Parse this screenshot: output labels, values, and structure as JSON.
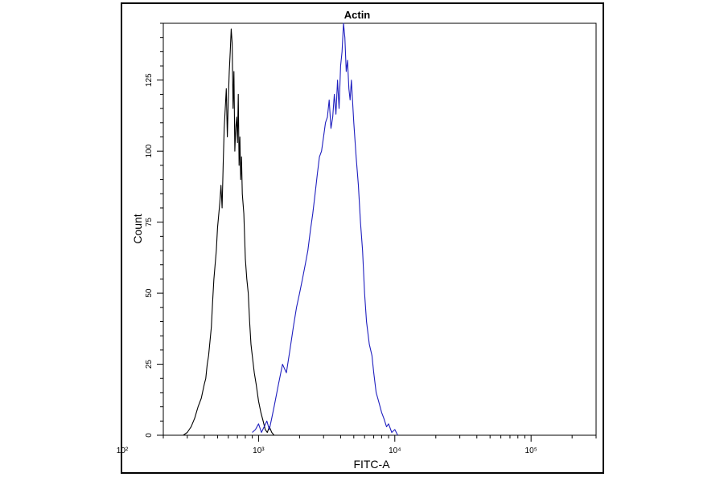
{
  "chart_data": {
    "type": "line",
    "title": "Actin",
    "xlabel": "FITC-A",
    "ylabel": "Count",
    "x_scale": "log",
    "xlim": [
      200,
      300000
    ],
    "ylim": [
      0,
      145
    ],
    "grid": false,
    "legend": "none",
    "x_ticks": [
      {
        "value": 100,
        "label": "10²"
      },
      {
        "value": 1000,
        "label": "10³"
      },
      {
        "value": 10000,
        "label": "10⁴"
      },
      {
        "value": 100000,
        "label": "10⁵"
      }
    ],
    "y_ticks": [
      0,
      25,
      50,
      75,
      100,
      125
    ],
    "series": [
      {
        "color": "#000000",
        "x": [
          280,
          300,
          320,
          340,
          360,
          380,
          400,
          410,
          420,
          430,
          440,
          450,
          460,
          470,
          480,
          490,
          500,
          520,
          530,
          540,
          550,
          560,
          570,
          580,
          590,
          600,
          610,
          620,
          630,
          640,
          650,
          660,
          670,
          680,
          690,
          700,
          710,
          720,
          730,
          740,
          750,
          760,
          780,
          800,
          820,
          840,
          860,
          880,
          900,
          930,
          960,
          1000,
          1040,
          1080,
          1120,
          1160,
          1200,
          1250,
          1300
        ],
        "y": [
          0,
          1,
          3,
          6,
          10,
          13,
          18,
          20,
          25,
          28,
          33,
          38,
          47,
          55,
          60,
          65,
          73,
          82,
          88,
          80,
          95,
          108,
          115,
          122,
          105,
          118,
          128,
          135,
          143,
          138,
          115,
          128,
          100,
          108,
          112,
          103,
          120,
          95,
          105,
          90,
          98,
          85,
          78,
          62,
          55,
          50,
          40,
          32,
          28,
          22,
          18,
          12,
          8,
          5,
          2,
          1,
          3,
          1,
          0
        ]
      },
      {
        "color": "#1f1fbf",
        "x": [
          900,
          950,
          1000,
          1050,
          1100,
          1150,
          1200,
          1250,
          1300,
          1400,
          1500,
          1600,
          1700,
          1800,
          1900,
          2000,
          2100,
          2200,
          2300,
          2400,
          2500,
          2600,
          2700,
          2800,
          2900,
          3000,
          3100,
          3200,
          3300,
          3400,
          3500,
          3600,
          3700,
          3800,
          3900,
          4000,
          4100,
          4200,
          4300,
          4400,
          4500,
          4600,
          4700,
          4800,
          5000,
          5200,
          5400,
          5600,
          5800,
          6000,
          6200,
          6500,
          6800,
          7000,
          7300,
          7600,
          8000,
          8300,
          8700,
          9000,
          9500,
          10000,
          10500
        ],
        "y": [
          1,
          2,
          4,
          1,
          3,
          5,
          2,
          6,
          10,
          18,
          25,
          22,
          30,
          38,
          45,
          50,
          55,
          60,
          65,
          72,
          78,
          85,
          92,
          98,
          100,
          105,
          110,
          112,
          118,
          108,
          112,
          120,
          113,
          125,
          115,
          130,
          135,
          145,
          140,
          128,
          132,
          122,
          118,
          125,
          110,
          98,
          88,
          75,
          65,
          50,
          40,
          32,
          28,
          22,
          15,
          12,
          8,
          6,
          3,
          4,
          1,
          2,
          0
        ]
      }
    ]
  }
}
